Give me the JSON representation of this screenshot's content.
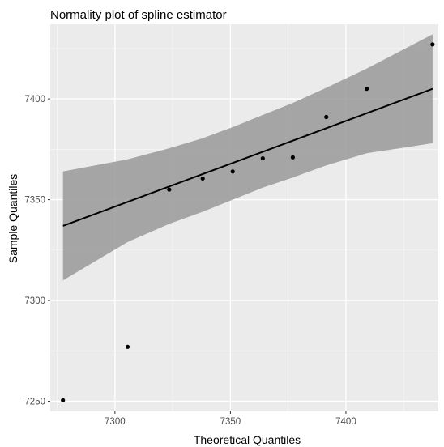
{
  "chart_data": {
    "type": "scatter",
    "title": "Normality plot of spline estimator",
    "xlabel": "Theoretical Quantiles",
    "ylabel": "Sample Quantiles",
    "xlim": [
      7272,
      7440
    ],
    "ylim": [
      7245,
      7437
    ],
    "x_ticks": [
      7300,
      7350,
      7400
    ],
    "y_ticks": [
      7250,
      7300,
      7350,
      7400
    ],
    "x_tick_labels": [
      "7300",
      "7350",
      "7400"
    ],
    "y_tick_labels": [
      "7250",
      "7300",
      "7350",
      "7400"
    ],
    "grid": true,
    "panel_background": "#ebebeb",
    "points": [
      {
        "x": 7277.5,
        "y": 7250.5
      },
      {
        "x": 7305.5,
        "y": 7277.0
      },
      {
        "x": 7323.5,
        "y": 7355.0
      },
      {
        "x": 7338.0,
        "y": 7360.5
      },
      {
        "x": 7351.0,
        "y": 7364.0
      },
      {
        "x": 7364.0,
        "y": 7370.5
      },
      {
        "x": 7377.0,
        "y": 7371.0
      },
      {
        "x": 7391.5,
        "y": 7391.0
      },
      {
        "x": 7409.0,
        "y": 7405.0
      },
      {
        "x": 7437.5,
        "y": 7427.0
      }
    ],
    "fit_line": {
      "x": [
        7277.5,
        7437.5
      ],
      "y": [
        7337.0,
        7405.0
      ],
      "color": "#000000"
    },
    "confidence_band": {
      "x": [
        7277.5,
        7305.5,
        7323.5,
        7338.0,
        7351.0,
        7364.0,
        7377.0,
        7391.5,
        7409.0,
        7437.5
      ],
      "lower": [
        7310.0,
        7329.0,
        7338.0,
        7344.0,
        7350.0,
        7356.0,
        7361.0,
        7367.0,
        7373.0,
        7378.0
      ],
      "upper": [
        7364.0,
        7370.0,
        7375.5,
        7380.5,
        7386.0,
        7392.0,
        7398.0,
        7405.5,
        7415.0,
        7432.0
      ],
      "color": "#999999"
    }
  }
}
